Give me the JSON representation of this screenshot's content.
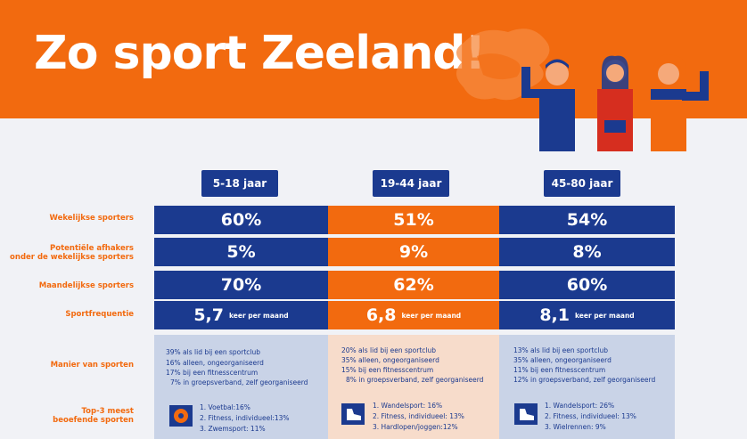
{
  "title": "Zo sport Zeeland!",
  "colors": {
    "blue": "#1b3a8f",
    "orange": "#f26a0f",
    "light_blue": "#c9d3e7",
    "peach": "#f7dccb"
  },
  "chart_data": {
    "type": "table",
    "columns": [
      "5-18 jaar",
      "19-44 jaar",
      "45-80 jaar"
    ],
    "rows": [
      {
        "label": "Wekelijkse sporters",
        "values": [
          "60%",
          "51%",
          "54%"
        ]
      },
      {
        "label_line1": "Potentiële afhakers",
        "label_line2": "onder de wekelijkse sporters",
        "values": [
          "5%",
          "9%",
          "8%"
        ]
      },
      {
        "label": "Maandelijkse sporters",
        "values": [
          "70%",
          "62%",
          "60%"
        ]
      },
      {
        "label": "Sportfrequentie",
        "values": [
          "5,7",
          "6,8",
          "8,1"
        ],
        "unit": "keer per maand"
      }
    ],
    "manier_label": "Manier van sporten",
    "top3_label_line1": "Top-3 meest",
    "top3_label_line2": "beoefende sporten",
    "manier": [
      [
        "39%  als lid bij een sportclub",
        "16%  alleen, ongeorganiseerd",
        "17%  bij een fitnesscentrum",
        "7%  in groepsverband, zelf georganiseerd"
      ],
      [
        "20% als lid bij een sportclub",
        "35% alleen, ongeorganiseerd",
        "15% bij een fitnesscentrum",
        "8% in groepsverband, zelf georganiseerd"
      ],
      [
        "13%  als lid bij een sportclub",
        "35% alleen, ongeorganiseerd",
        "11% bij een fitnesscentrum",
        "12% in groepsverband, zelf georganiseerd"
      ]
    ],
    "top3": [
      [
        "1. Voetbal:16%",
        "2. Fitness, individueel:13%",
        "3. Zwemsport: 11%"
      ],
      [
        "1. Wandelsport: 16%",
        "2. Fitness, individueel: 13%",
        "3. Hardlopen/joggen:12%"
      ],
      [
        "1. Wandelsport: 26%",
        "2. Fitness, individueel: 13%",
        "3. Wielrennen: 9%"
      ]
    ]
  }
}
